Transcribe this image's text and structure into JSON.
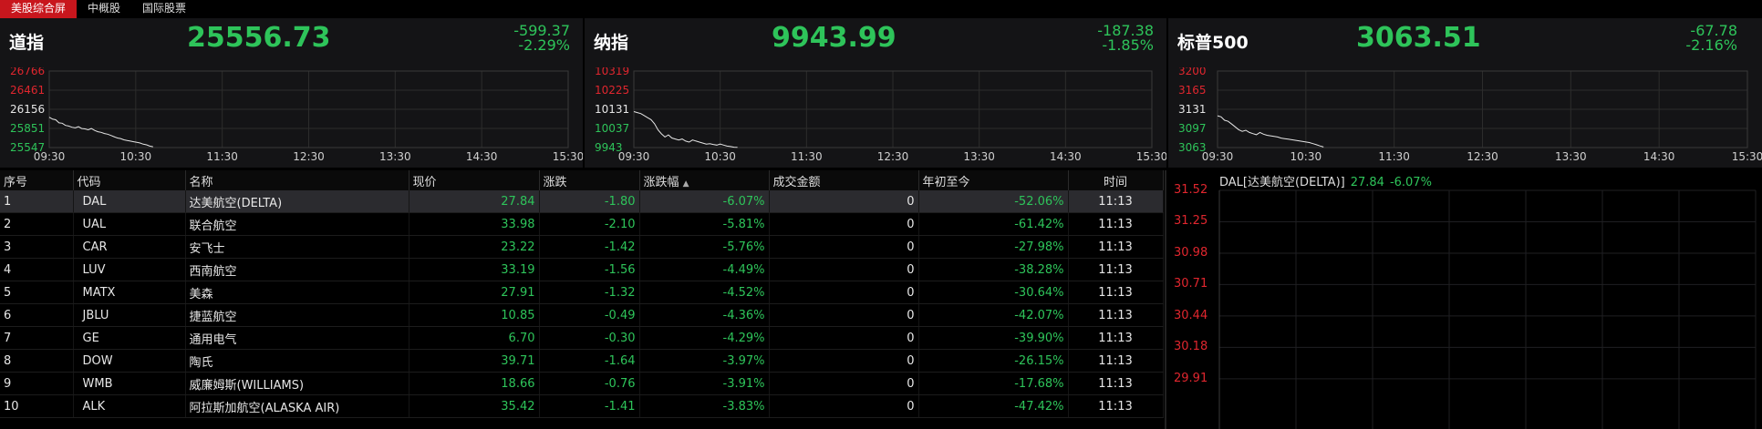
{
  "tabs": [
    "美股综合屏",
    "中概股",
    "国际股票"
  ],
  "indices": [
    {
      "name": "道指",
      "value": "25556.73",
      "change": "-599.37",
      "pct": "-2.29%",
      "yticks": [
        {
          "v": "26766",
          "c": "#e0262e"
        },
        {
          "v": "26461",
          "c": "#e0262e"
        },
        {
          "v": "26156",
          "c": "#e6e6e6"
        },
        {
          "v": "25851",
          "c": "#2ec45a"
        },
        {
          "v": "25547",
          "c": "#2ec45a"
        }
      ],
      "series": [
        26030,
        26000,
        25990,
        25940,
        25935,
        25900,
        25890,
        25870,
        25860,
        25880,
        25850,
        25845,
        25830,
        25850,
        25820,
        25800,
        25790,
        25770,
        25760,
        25740,
        25720,
        25700,
        25690,
        25670,
        25660,
        25650,
        25640,
        25630,
        25620,
        25600,
        25590,
        25570,
        25560
      ]
    },
    {
      "name": "纳指",
      "value": "9943.99",
      "change": "-187.38",
      "pct": "-1.85%",
      "yticks": [
        {
          "v": "10319",
          "c": "#e0262e"
        },
        {
          "v": "10225",
          "c": "#e0262e"
        },
        {
          "v": "10131",
          "c": "#e6e6e6"
        },
        {
          "v": "10037",
          "c": "#2ec45a"
        },
        {
          "v": "9943",
          "c": "#2ec45a"
        }
      ],
      "series": [
        10120,
        10115,
        10110,
        10100,
        10090,
        10080,
        10060,
        10030,
        10010,
        9995,
        10005,
        9990,
        9985,
        9980,
        9985,
        9975,
        9970,
        9980,
        9975,
        9970,
        9965,
        9960,
        9962,
        9958,
        9955,
        9960,
        9955,
        9950,
        9948,
        9945,
        9944
      ]
    },
    {
      "name": "标普500",
      "value": "3063.51",
      "change": "-67.78",
      "pct": "-2.16%",
      "yticks": [
        {
          "v": "3200",
          "c": "#e0262e"
        },
        {
          "v": "3165",
          "c": "#e0262e"
        },
        {
          "v": "3131",
          "c": "#e6e6e6"
        },
        {
          "v": "3097",
          "c": "#2ec45a"
        },
        {
          "v": "3063",
          "c": "#2ec45a"
        }
      ],
      "series": [
        3120,
        3118,
        3112,
        3110,
        3105,
        3100,
        3095,
        3092,
        3094,
        3090,
        3088,
        3086,
        3090,
        3087,
        3085,
        3084,
        3083,
        3082,
        3080,
        3079,
        3078,
        3077,
        3076,
        3075,
        3074,
        3073,
        3072,
        3070,
        3068,
        3066,
        3064
      ]
    }
  ],
  "time_axis": [
    "09:30",
    "10:30",
    "11:30",
    "12:30",
    "13:30",
    "14:30",
    "15:30"
  ],
  "table": {
    "headers": [
      "序号",
      "代码",
      "名称",
      "现价",
      "涨跌",
      "涨跌幅",
      "成交金额",
      "年初至今",
      "时间"
    ],
    "rows": [
      [
        "1",
        "DAL",
        "达美航空(DELTA)",
        "27.84",
        "-1.80",
        "-6.07%",
        "0",
        "-52.06%",
        "11:13"
      ],
      [
        "2",
        "UAL",
        "联合航空",
        "33.98",
        "-2.10",
        "-5.81%",
        "0",
        "-61.42%",
        "11:13"
      ],
      [
        "3",
        "CAR",
        "安飞士",
        "23.22",
        "-1.42",
        "-5.76%",
        "0",
        "-27.98%",
        "11:13"
      ],
      [
        "4",
        "LUV",
        "西南航空",
        "33.19",
        "-1.56",
        "-4.49%",
        "0",
        "-38.28%",
        "11:13"
      ],
      [
        "5",
        "MATX",
        "美森",
        "27.91",
        "-1.32",
        "-4.52%",
        "0",
        "-30.64%",
        "11:13"
      ],
      [
        "6",
        "JBLU",
        "捷蓝航空",
        "10.85",
        "-0.49",
        "-4.36%",
        "0",
        "-42.07%",
        "11:13"
      ],
      [
        "7",
        "GE",
        "通用电气",
        "6.70",
        "-0.30",
        "-4.29%",
        "0",
        "-39.90%",
        "11:13"
      ],
      [
        "8",
        "DOW",
        "陶氏",
        "39.71",
        "-1.64",
        "-3.97%",
        "0",
        "-26.15%",
        "11:13"
      ],
      [
        "9",
        "WMB",
        "威廉姆斯(WILLIAMS)",
        "18.66",
        "-0.76",
        "-3.91%",
        "0",
        "-17.68%",
        "11:13"
      ],
      [
        "10",
        "ALK",
        "阿拉斯加航空(ALASKA AIR)",
        "35.42",
        "-1.41",
        "-3.83%",
        "0",
        "-47.42%",
        "11:13"
      ]
    ]
  },
  "detail": {
    "title": "DAL[达美航空(DELTA)]",
    "price": "27.84",
    "pct": "-6.07%",
    "yticks": [
      "31.52",
      "31.25",
      "30.98",
      "30.71",
      "30.44",
      "30.18",
      "29.91"
    ]
  },
  "colors": {
    "up": "#e0262e",
    "down": "#2ec45a",
    "accent": "#c8161d"
  },
  "icons": {
    "sort": "sort-up-icon"
  }
}
